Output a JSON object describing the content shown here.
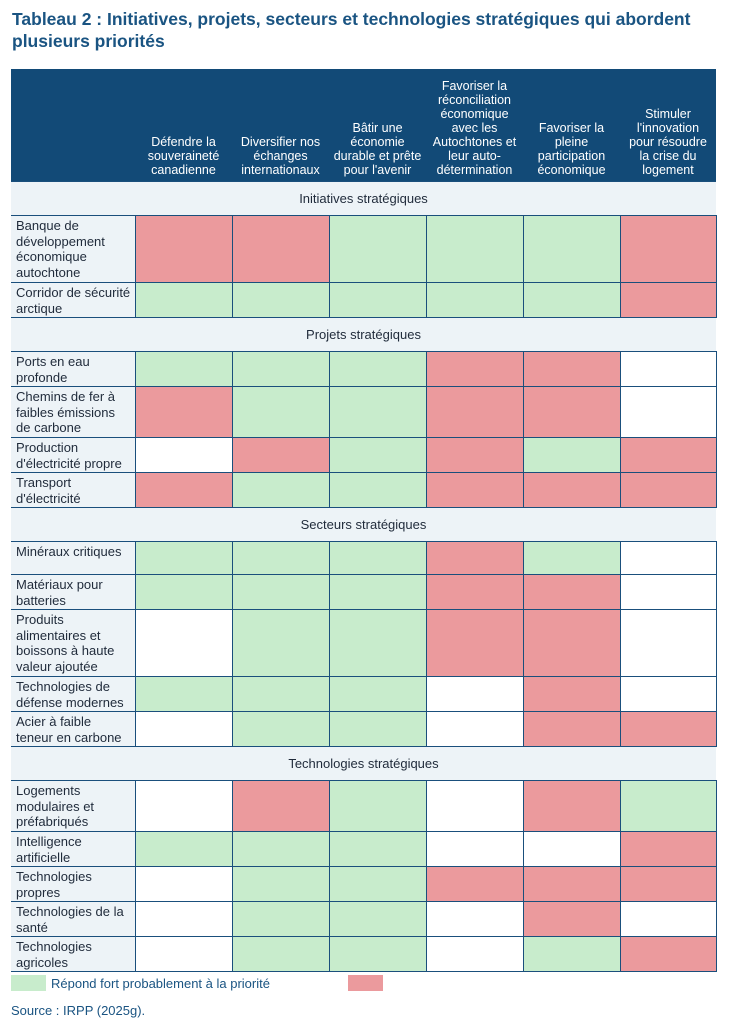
{
  "title": "Tableau 2 : Initiatives, projets, secteurs et technologies stratégiques qui abordent plusieurs priorités",
  "columns": [
    "Défendre la souveraineté canadienne",
    "Diversifier nos échanges internationaux",
    "Bâtir une économie durable et prête pour l'avenir",
    "Favoriser la réconciliation économique avec les Autochtones et leur auto-détermination",
    "Favoriser la pleine participation économique",
    "Stimuler l'innovation pour résoudre la crise du logement"
  ],
  "sections": [
    {
      "title": "Initiatives stratégiques",
      "rows": [
        {
          "label": "Banque de développement économique autochtone",
          "cells": [
            "red",
            "red",
            "green",
            "green",
            "green",
            "red"
          ]
        },
        {
          "label": "Corridor de sécurité arctique",
          "cells": [
            "green",
            "green",
            "green",
            "green",
            "green",
            "red"
          ]
        }
      ]
    },
    {
      "title": "Projets stratégiques",
      "rows": [
        {
          "label": "Ports en eau profonde",
          "cells": [
            "green",
            "green",
            "green",
            "red",
            "red",
            "white"
          ]
        },
        {
          "label": "Chemins de fer à faibles émissions de carbone",
          "cells": [
            "red",
            "green",
            "green",
            "red",
            "red",
            "white"
          ]
        },
        {
          "label": "Production d'électricité propre",
          "cells": [
            "white",
            "red",
            "green",
            "red",
            "green",
            "red"
          ]
        },
        {
          "label": "Transport d'électricité",
          "cells": [
            "red",
            "green",
            "green",
            "red",
            "red",
            "red"
          ]
        }
      ]
    },
    {
      "title": "Secteurs stratégiques",
      "rows": [
        {
          "label": "Minéraux critiques",
          "cells": [
            "green",
            "green",
            "green",
            "red",
            "green",
            "white"
          ]
        },
        {
          "label": "Matériaux pour batteries",
          "cells": [
            "green",
            "green",
            "green",
            "red",
            "red",
            "white"
          ]
        },
        {
          "label": "Produits alimentaires et boissons à haute valeur ajoutée",
          "cells": [
            "white",
            "green",
            "green",
            "red",
            "red",
            "white"
          ]
        },
        {
          "label": "Technologies de défense modernes",
          "cells": [
            "green",
            "green",
            "green",
            "white",
            "red",
            "white"
          ]
        },
        {
          "label": "Acier à faible teneur en carbone",
          "cells": [
            "white",
            "green",
            "green",
            "white",
            "red",
            "red"
          ]
        }
      ]
    },
    {
      "title": "Technologies stratégiques",
      "rows": [
        {
          "label": "Logements modulaires et préfabriqués",
          "cells": [
            "white",
            "red",
            "green",
            "white",
            "red",
            "green"
          ]
        },
        {
          "label": "Intelligence artificielle",
          "cells": [
            "green",
            "green",
            "green",
            "white",
            "white",
            "red"
          ]
        },
        {
          "label": "Technologies propres",
          "cells": [
            "white",
            "green",
            "green",
            "red",
            "red",
            "red"
          ]
        },
        {
          "label": "Technologies de la santé",
          "cells": [
            "white",
            "green",
            "green",
            "white",
            "red",
            "white"
          ]
        },
        {
          "label": "Technologies agricoles",
          "cells": [
            "white",
            "green",
            "green",
            "white",
            "green",
            "red"
          ]
        }
      ]
    }
  ],
  "legend": {
    "green_label": "Répond fort probablement à la priorité",
    "green_color": "#c8eccc",
    "red_color": "#eb9a9d"
  },
  "source": "Source : IRPP (2025g)."
}
